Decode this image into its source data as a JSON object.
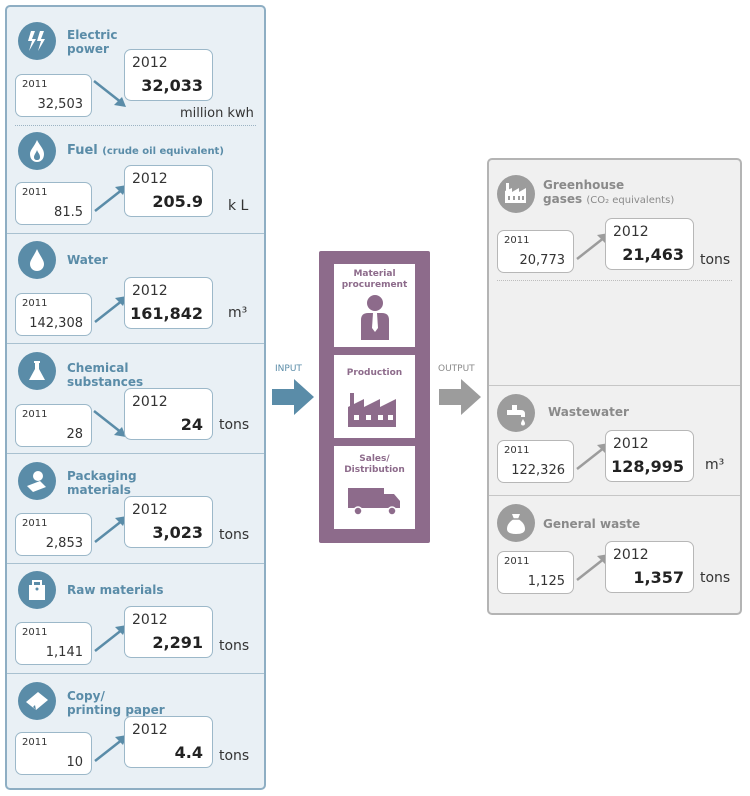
{
  "input": {
    "label": "INPUT",
    "items": [
      {
        "title": "Electric",
        "title2": "power",
        "note": "",
        "prev_year": "2011",
        "prev_value": "32,503",
        "year": "2012",
        "value": "32,033",
        "unit": "million kwh"
      },
      {
        "title": "Fuel",
        "title2": "",
        "note": "(crude oil equivalent)",
        "prev_year": "2011",
        "prev_value": "81.5",
        "year": "2012",
        "value": "205.9",
        "unit": "k L"
      },
      {
        "title": "Water",
        "title2": "",
        "note": "",
        "prev_year": "2011",
        "prev_value": "142,308",
        "year": "2012",
        "value": "161,842",
        "unit": "m³"
      },
      {
        "title": "Chemical",
        "title2": "substances",
        "note": "",
        "prev_year": "2011",
        "prev_value": "28",
        "year": "2012",
        "value": "24",
        "unit": "tons"
      },
      {
        "title": "Packaging",
        "title2": "materials",
        "note": "",
        "prev_year": "2011",
        "prev_value": "2,853",
        "year": "2012",
        "value": "3,023",
        "unit": "tons"
      },
      {
        "title": "Raw materials",
        "title2": "",
        "note": "",
        "prev_year": "2011",
        "prev_value": "1,141",
        "year": "2012",
        "value": "2,291",
        "unit": "tons"
      },
      {
        "title": "Copy/",
        "title2": "printing paper",
        "note": "",
        "prev_year": "2011",
        "prev_value": "10",
        "year": "2012",
        "value": "4.4",
        "unit": "tons"
      }
    ]
  },
  "process": {
    "steps": [
      {
        "label": "Material",
        "label2": "procurement"
      },
      {
        "label": "Production",
        "label2": ""
      },
      {
        "label": "Sales/",
        "label2": "Distribution"
      }
    ]
  },
  "output": {
    "label": "OUTPUT",
    "items": [
      {
        "title": "Greenhouse",
        "title2": "gases",
        "note": "(CO₂ equivalents)",
        "prev_year": "2011",
        "prev_value": "20,773",
        "year": "2012",
        "value": "21,463",
        "unit": "tons"
      },
      {
        "title": "Wastewater",
        "title2": "",
        "note": "",
        "prev_year": "2011",
        "prev_value": "122,326",
        "year": "2012",
        "value": "128,995",
        "unit": "m³"
      },
      {
        "title": "General waste",
        "title2": "",
        "note": "",
        "prev_year": "2011",
        "prev_value": "1,125",
        "year": "2012",
        "value": "1,357",
        "unit": "tons"
      }
    ]
  },
  "colors": {
    "input_accent": "#5a8ca8",
    "process_accent": "#8d6b8b",
    "output_accent": "#9c9c9c"
  },
  "icons": [
    "lightning-icon",
    "flame-icon",
    "water-drop-icon",
    "flask-icon",
    "package-icon",
    "bag-icon",
    "paper-icon",
    "factory-icon",
    "faucet-icon",
    "sack-icon",
    "person-icon",
    "truck-icon"
  ]
}
